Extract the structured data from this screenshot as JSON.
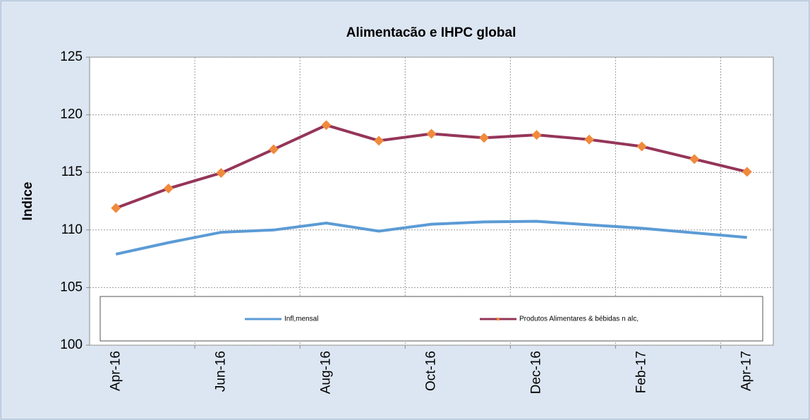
{
  "chart_data": {
    "type": "line",
    "title": "Alimentacão e IHPC global",
    "y_label": "Indice",
    "categories": [
      "Apr-16",
      null,
      "Jun-16",
      null,
      "Aug-16",
      null,
      "Oct-16",
      null,
      "Dec-16",
      null,
      "Feb-17",
      null,
      "Apr-17"
    ],
    "series": [
      {
        "name": "Infl,mensal",
        "color": "#5b9bd5",
        "values": [
          107.9,
          108.9,
          109.8,
          110.0,
          110.6,
          109.9,
          110.5,
          110.7,
          110.75,
          110.45,
          110.15,
          109.75,
          109.35
        ]
      },
      {
        "name": "Produtos Alimentares & bébidas n alc,",
        "color": "#953559",
        "marker_color": "#f08a3c",
        "values": [
          111.9,
          113.6,
          114.95,
          117.0,
          119.1,
          117.75,
          118.35,
          118.0,
          118.25,
          117.85,
          117.25,
          116.15,
          115.05
        ]
      }
    ],
    "ylim": [
      100,
      125
    ],
    "yticks": [
      100,
      105,
      110,
      115,
      120,
      125
    ],
    "grid": true,
    "legend": "bottom"
  }
}
